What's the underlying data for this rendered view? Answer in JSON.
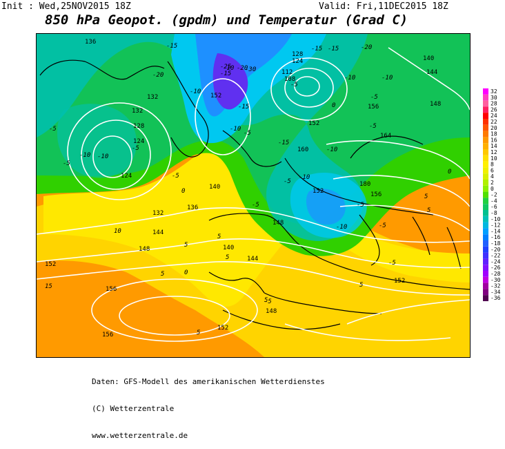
{
  "header": {
    "init": "Init : Wed,25NOV2015 18Z",
    "valid": "Valid: Fri,11DEC2015 18Z",
    "title": "850 hPa Geopot. (gpdm) und Temperatur (Grad C)"
  },
  "legend": {
    "labels": [
      "32",
      "30",
      "28",
      "26",
      "24",
      "22",
      "20",
      "18",
      "16",
      "14",
      "12",
      "10",
      "8",
      "6",
      "4",
      "2",
      "0",
      "-2",
      "-4",
      "-6",
      "-8",
      "-10",
      "-12",
      "-14",
      "-16",
      "-18",
      "-20",
      "-22",
      "-24",
      "-26",
      "-28",
      "-30",
      "-32",
      "-34",
      "-36"
    ],
    "colors": [
      "#ff00ff",
      "#ff3fbf",
      "#ff5f9f",
      "#ff1f5f",
      "#ff0000",
      "#ff3000",
      "#ff5500",
      "#ff7a00",
      "#ff9900",
      "#ffb000",
      "#ffc800",
      "#ffe000",
      "#fff000",
      "#f0f000",
      "#d8f000",
      "#b0f000",
      "#8cf000",
      "#50e000",
      "#20d040",
      "#10c860",
      "#00c090",
      "#00c0b8",
      "#00b8e0",
      "#00a0ff",
      "#0080ff",
      "#2060ff",
      "#2040ff",
      "#4030ff",
      "#6020ff",
      "#8010ff",
      "#a000ff",
      "#c000e0",
      "#a000a0",
      "#800080",
      "#500050"
    ]
  },
  "map_labels": {
    "geopotential": [
      "136",
      "132",
      "132",
      "128",
      "124",
      "124",
      "132",
      "136",
      "140",
      "144",
      "148",
      "152",
      "156",
      "156",
      "140",
      "144",
      "148",
      "152",
      "152",
      "148",
      "128",
      "124",
      "112",
      "108",
      "152",
      "152",
      "160",
      "180",
      "164",
      "156",
      "152",
      "140",
      "144",
      "148",
      "156"
    ],
    "temperature": [
      "-15",
      "-20",
      "-10",
      "-10",
      "-5",
      "-10",
      "-5",
      "-5",
      "0",
      "-5",
      "-15",
      "-10",
      "-10",
      "-5",
      "-15",
      "-25",
      "-20",
      "-30",
      "-5",
      "-10",
      "-15",
      "-5",
      "0",
      "5",
      "10",
      "5",
      "0",
      "5",
      "15",
      "5",
      "5",
      "-5",
      "-10",
      "-5",
      "-5",
      "-10",
      "-5",
      "-5",
      "-20",
      "-15",
      "-10",
      "-5",
      "-5",
      "-15",
      "-10",
      "0",
      "5",
      "5",
      "5",
      "5"
    ]
  },
  "footer": {
    "line1": "Daten: GFS-Modell des amerikanischen Wetterdienstes",
    "line2": "(C) Wetterzentrale",
    "line3": "www.wetterzentrale.de"
  },
  "colors": {
    "orange": "#ff9a00",
    "orange_light": "#ffb000",
    "yellow": "#ffe800",
    "yellow_green": "#c8f000",
    "green": "#30d000",
    "green_dark": "#10c060",
    "teal": "#00c0b0",
    "cyan": "#00c8f0",
    "blue": "#1e90ff",
    "blue_dark": "#3050ff",
    "purple": "#7020e0",
    "contour": "#ffffff",
    "coast": "#000000"
  }
}
